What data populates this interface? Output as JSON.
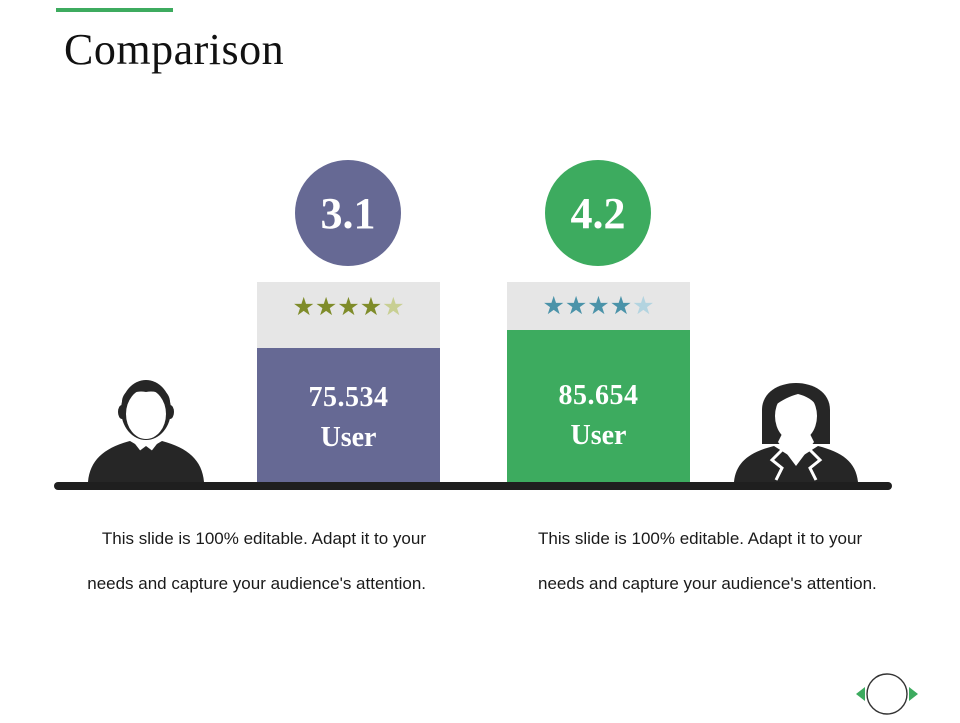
{
  "slide": {
    "title": "Comparison",
    "colors": {
      "accent_green": "#3dab5f",
      "purple": "#666994",
      "gray_bar": "#e6e6e6",
      "dark": "#1f1f1f",
      "olive_star": "#7f8c2a",
      "olive_star_light": "#c8cf93",
      "teal_star": "#4b93a9",
      "teal_star_light": "#b3d4e0"
    }
  },
  "left": {
    "badge_value": "3.1",
    "rating": 4,
    "rating_max": 5,
    "value": "75.534",
    "label": "User",
    "description": "This slide is 100% editable. Adapt it to your needs and capture your audience's attention."
  },
  "right": {
    "badge_value": "4.2",
    "rating": 4,
    "rating_max": 5,
    "value": "85.654",
    "label": "User",
    "description": "This slide is 100% editable. Adapt it to your needs and capture your audience's attention."
  },
  "icons": {
    "male_user": "male-user-icon",
    "female_user": "female-user-icon",
    "star": "star-icon",
    "prev": "arrow-left-icon",
    "next": "arrow-right-icon",
    "home": "circle-icon"
  }
}
